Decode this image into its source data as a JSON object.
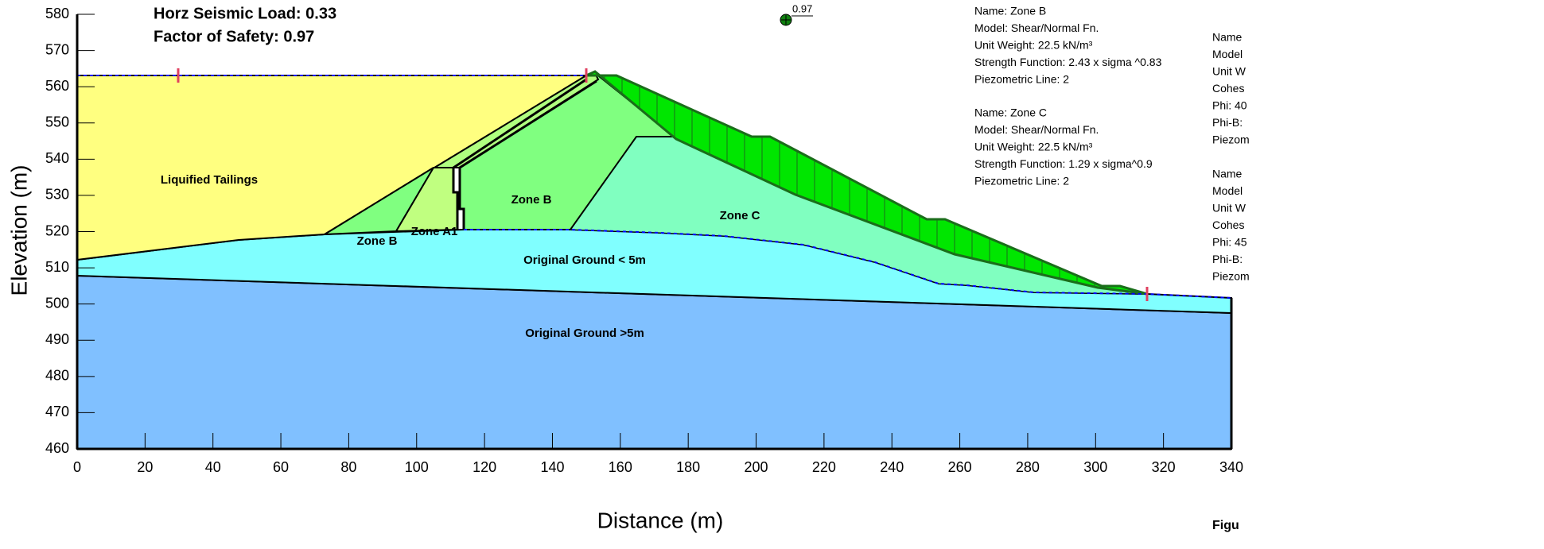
{
  "annotations": {
    "seismic": "Horz Seismic Load: 0.33",
    "fos": "Factor of Safety: 0.97",
    "point_label": "0.97"
  },
  "axes": {
    "x": {
      "title": "Distance (m)",
      "ticks": [
        0,
        20,
        40,
        60,
        80,
        100,
        120,
        140,
        160,
        180,
        200,
        220,
        240,
        260,
        280,
        300,
        320,
        340
      ]
    },
    "y": {
      "title": "Elevation (m)",
      "ticks": [
        460,
        470,
        480,
        490,
        500,
        510,
        520,
        530,
        540,
        550,
        560,
        570,
        580
      ]
    }
  },
  "regions": [
    "Liquified Tailings",
    "Zone B",
    "Zone B",
    "Zone A1",
    "Zone C",
    "Original Ground < 5m",
    "Original Ground >5m"
  ],
  "materials": [
    [
      "Name: Zone B",
      "Model: Shear/Normal Fn.",
      "Unit Weight: 22.5 kN/m³",
      "Strength Function: 2.43 x sigma ^0.83",
      "Piezometric Line: 2"
    ],
    [
      "Name: Zone C",
      "Model: Shear/Normal Fn.",
      "Unit Weight: 22.5 kN/m³",
      "Strength Function: 1.29 x sigma^0.9",
      "Piezometric Line: 2"
    ],
    [
      "Name",
      "Model",
      "Unit W",
      "Cohes",
      "Phi: 40",
      "Phi-B:",
      "Piezom"
    ],
    [
      "Name",
      "Model",
      "Unit W",
      "Cohes",
      "Phi: 45",
      "Phi-B:",
      "Piezom"
    ]
  ],
  "figure_label": "Figu"
}
